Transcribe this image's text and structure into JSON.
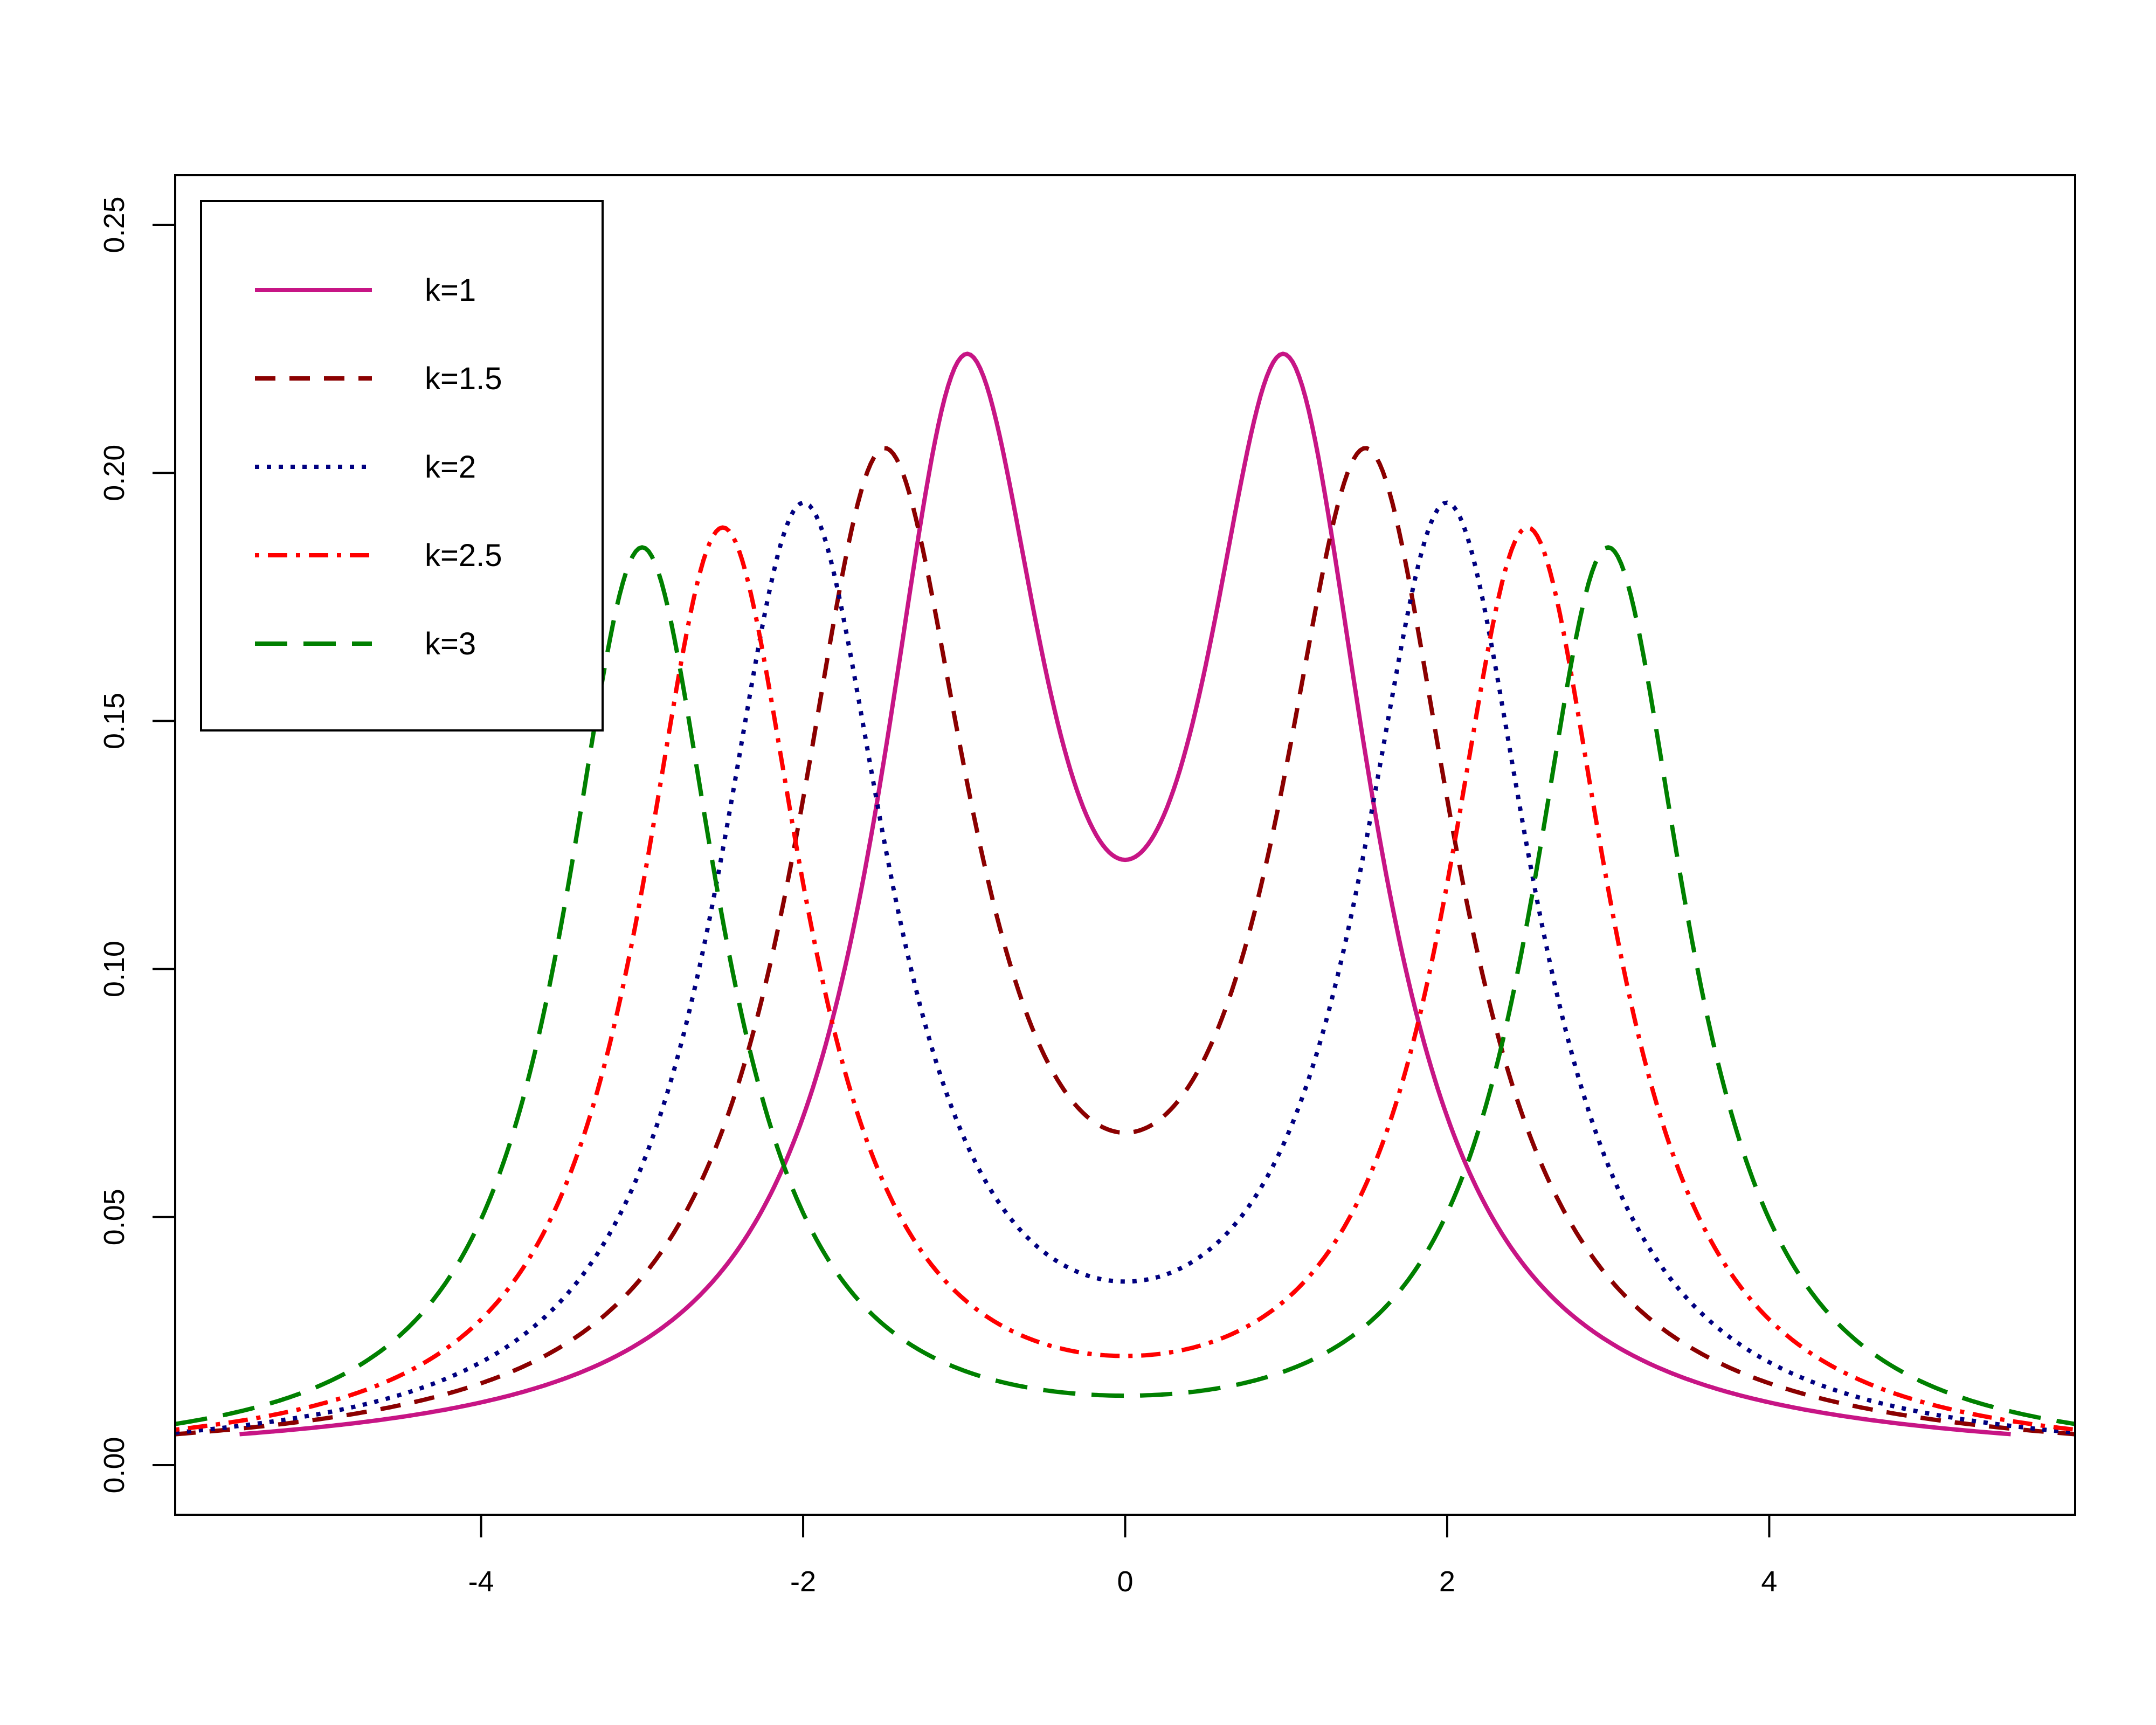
{
  "chart_data": {
    "type": "line",
    "title": "",
    "xlabel": "",
    "ylabel": "",
    "xlim": [
      -5.9,
      5.9
    ],
    "ylim": [
      -0.01,
      0.26
    ],
    "x_ticks": [
      -4,
      -2,
      0,
      2,
      4
    ],
    "x_tick_labels": [
      "-4",
      "-2",
      "0",
      "2",
      "4"
    ],
    "y_ticks": [
      0.0,
      0.05,
      0.1,
      0.15,
      0.2,
      0.25
    ],
    "y_tick_labels": [
      "0.00",
      "0.05",
      "0.10",
      "0.15",
      "0.20",
      "0.25"
    ],
    "grid": false,
    "legend_position": "top-left",
    "series": [
      {
        "name": "k=1",
        "k": 1,
        "x_range": [
          -5.5,
          5.5
        ],
        "peak": 0.224,
        "center": 0.122,
        "color": "#C71585",
        "dash": "solid"
      },
      {
        "name": "k=1.5",
        "k": 1.5,
        "x_range": [
          -5.9,
          5.9
        ],
        "peak": 0.205,
        "center": 0.067,
        "color": "#8B0000",
        "dash": "dashed"
      },
      {
        "name": "k=2",
        "k": 2,
        "x_range": [
          -5.9,
          5.9
        ],
        "peak": 0.194,
        "center": 0.037,
        "color": "#000080",
        "dash": "dotted"
      },
      {
        "name": "k=2.5",
        "k": 2.5,
        "x_range": [
          -5.9,
          5.9
        ],
        "peak": 0.189,
        "center": 0.022,
        "color": "#FF0000",
        "dash": "dotdash"
      },
      {
        "name": "k=3",
        "k": 3,
        "x_range": [
          -5.9,
          5.9
        ],
        "peak": 0.185,
        "center": 0.014,
        "color": "#008000",
        "dash": "longdash"
      }
    ]
  }
}
